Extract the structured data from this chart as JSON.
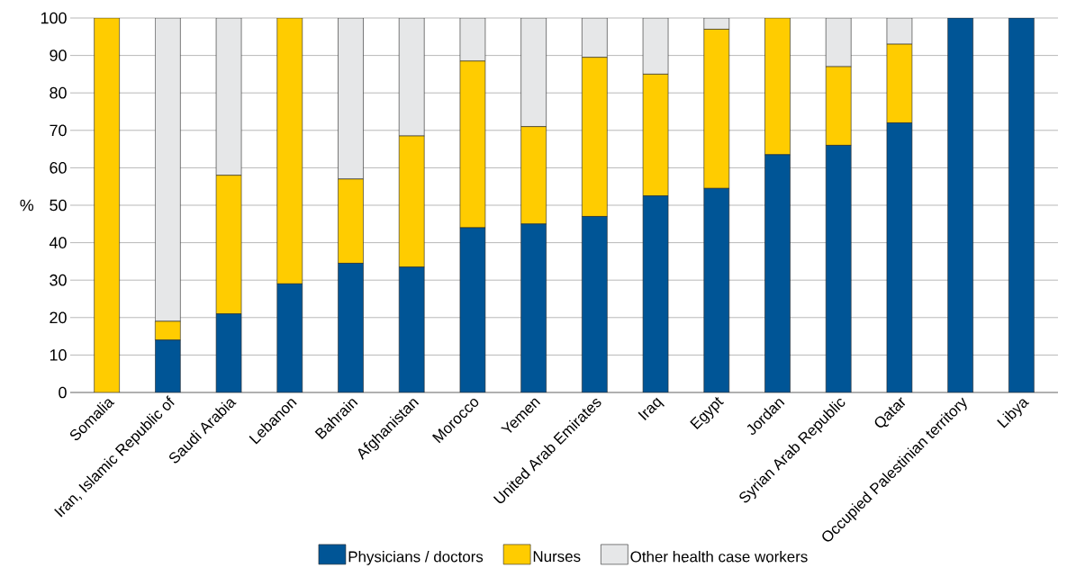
{
  "chart_data": {
    "type": "bar",
    "stacked": true,
    "ylabel": "%",
    "categories": [
      "Somalia",
      "Iran, Islamic Republic of",
      "Saudi Arabia",
      "Lebanon",
      "Bahrain",
      "Afghanistan",
      "Morocco",
      "Yemen",
      "United Arab Emirates",
      "Iraq",
      "Egypt",
      "Jordan",
      "Syrian Arab Republic",
      "Qatar",
      "Occupied Palestinian territory",
      "Libya"
    ],
    "series": [
      {
        "name": "Physicians / doctors",
        "color": "#005596",
        "values": [
          0,
          14,
          21,
          29,
          34.5,
          33.5,
          44,
          45,
          47,
          52.5,
          54.5,
          63.5,
          66,
          72,
          100,
          100
        ]
      },
      {
        "name": "Nurses",
        "color": "#ffcc00",
        "values": [
          100,
          5,
          37,
          71,
          22.5,
          35,
          44.5,
          26,
          42.5,
          32.5,
          42.5,
          36.5,
          21,
          21,
          0,
          0
        ]
      },
      {
        "name": "Other health case workers",
        "color": "#e6e7e8",
        "values": [
          0,
          81,
          42,
          0,
          43,
          31.5,
          11.5,
          29,
          10.5,
          15,
          3,
          0,
          13,
          7,
          0,
          0
        ]
      }
    ],
    "ylim": [
      0,
      100
    ],
    "yticks": [
      0,
      10,
      20,
      30,
      40,
      50,
      60,
      70,
      80,
      90,
      100
    ],
    "grid": "y",
    "legend": "bottom"
  }
}
